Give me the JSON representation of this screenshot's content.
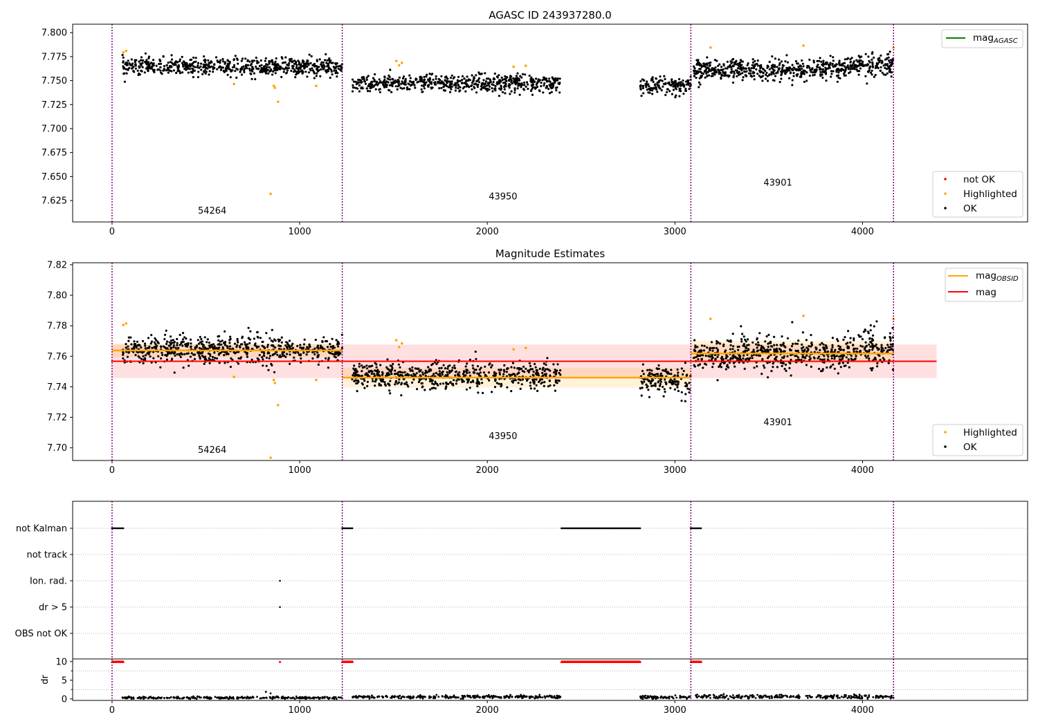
{
  "colors": {
    "ok": "#000000",
    "highlighted": "#ffa500",
    "not_ok": "#ff0000",
    "agasc_line": "#008000",
    "obsid_line": "#ffa500",
    "mag_line": "#ff0000",
    "obs_boundary": "#800080",
    "flag_row_grid": "#b0b0b0"
  },
  "chart_data": [
    {
      "type": "scatter",
      "title": "AGASC ID 243937280.0",
      "xlim": [
        -210,
        4880
      ],
      "ylim": [
        7.6027,
        7.8088
      ],
      "xticks": [
        0,
        1000,
        2000,
        3000,
        4000
      ],
      "xtick_labels": [
        "0",
        "1000",
        "2000",
        "3000",
        "4000"
      ],
      "yticks": [
        7.625,
        7.65,
        7.675,
        7.7,
        7.725,
        7.75,
        7.775,
        7.8
      ],
      "ytick_labels": [
        "7.625",
        "7.650",
        "7.675",
        "7.700",
        "7.725",
        "7.750",
        "7.775",
        "7.800"
      ],
      "obs_boundaries": [
        0,
        1227,
        3085,
        4165
      ],
      "obsid_labels": [
        {
          "text": "54264",
          "x": 610,
          "y": 7.6115
        },
        {
          "text": "43950",
          "x": 2160,
          "y": 7.626
        },
        {
          "text": "43901",
          "x": 3625,
          "y": 7.6405
        }
      ],
      "ok_segments": [
        {
          "x_start": 55,
          "x_end": 1227,
          "mean": 7.7645,
          "spread": 0.0045,
          "n": 650
        },
        {
          "x_start": 1280,
          "x_end": 2390,
          "mean": 7.747,
          "spread": 0.0045,
          "n": 600
        },
        {
          "x_start": 2815,
          "x_end": 3085,
          "mean": 7.7445,
          "spread": 0.0045,
          "n": 150
        },
        {
          "x_start": 3100,
          "x_end": 3920,
          "mean": 7.7615,
          "spread": 0.0055,
          "n": 500
        },
        {
          "x_start": 3920,
          "x_end": 4165,
          "mean": 7.765,
          "spread": 0.006,
          "n": 150
        }
      ],
      "highlighted_points": [
        [
          60,
          7.7795
        ],
        [
          75,
          7.781
        ],
        [
          650,
          7.7465
        ],
        [
          862,
          7.7445
        ],
        [
          868,
          7.7425
        ],
        [
          845,
          7.632
        ],
        [
          885,
          7.728
        ],
        [
          1088,
          7.7445
        ],
        [
          1515,
          7.7705
        ],
        [
          1530,
          7.766
        ],
        [
          1545,
          7.7685
        ],
        [
          2140,
          7.7645
        ],
        [
          2205,
          7.7655
        ],
        [
          3190,
          7.7845
        ],
        [
          3685,
          7.7865
        ],
        [
          4165,
          7.7845
        ]
      ],
      "series_legend": [
        {
          "name": "mag_AGASC",
          "label": "mag",
          "subscript": "AGASC"
        }
      ],
      "point_legend": [
        "not OK",
        "Highlighted",
        "OK"
      ]
    },
    {
      "type": "scatter",
      "title": "Magnitude Estimates",
      "xlim": [
        -210,
        4880
      ],
      "ylim": [
        7.6917,
        7.8213
      ],
      "xticks": [
        0,
        1000,
        2000,
        3000,
        4000
      ],
      "xtick_labels": [
        "0",
        "1000",
        "2000",
        "3000",
        "4000"
      ],
      "yticks": [
        7.7,
        7.72,
        7.74,
        7.76,
        7.78,
        7.8,
        7.82
      ],
      "ytick_labels": [
        "7.70",
        "7.72",
        "7.74",
        "7.76",
        "7.78",
        "7.80",
        "7.82"
      ],
      "obs_boundaries": [
        0,
        1227,
        3085,
        4165
      ],
      "obsid_labels": [
        {
          "text": "54264",
          "x": 610,
          "y": 7.6967
        },
        {
          "text": "43950",
          "x": 2160,
          "y": 7.7057
        },
        {
          "text": "43901",
          "x": 3625,
          "y": 7.7147
        }
      ],
      "mag": {
        "value": 7.7567,
        "band": [
          7.7457,
          7.7677
        ],
        "x_range": [
          -5,
          4395
        ]
      },
      "mag_obsid": [
        {
          "x_start": 0,
          "x_end": 1227,
          "value": 7.7638,
          "band": [
            7.7593,
            7.7683
          ]
        },
        {
          "x_start": 1227,
          "x_end": 3085,
          "value": 7.746,
          "band": [
            7.7395,
            7.7525
          ]
        },
        {
          "x_start": 3085,
          "x_end": 4165,
          "value": 7.7618,
          "band": [
            7.7553,
            7.7703
          ]
        }
      ],
      "ok_segments": [
        {
          "x_start": 55,
          "x_end": 1227,
          "mean": 7.7645,
          "spread": 0.0045,
          "n": 650
        },
        {
          "x_start": 1280,
          "x_end": 2390,
          "mean": 7.747,
          "spread": 0.0045,
          "n": 600
        },
        {
          "x_start": 2815,
          "x_end": 3085,
          "mean": 7.7445,
          "spread": 0.0045,
          "n": 150
        },
        {
          "x_start": 3100,
          "x_end": 3920,
          "mean": 7.7615,
          "spread": 0.0055,
          "n": 500
        },
        {
          "x_start": 3920,
          "x_end": 4165,
          "mean": 7.765,
          "spread": 0.006,
          "n": 150
        }
      ],
      "highlighted_points": [
        [
          60,
          7.7805
        ],
        [
          75,
          7.7815
        ],
        [
          650,
          7.7465
        ],
        [
          862,
          7.7445
        ],
        [
          868,
          7.7425
        ],
        [
          845,
          7.6935
        ],
        [
          885,
          7.728
        ],
        [
          1088,
          7.7445
        ],
        [
          1515,
          7.7705
        ],
        [
          1530,
          7.766
        ],
        [
          1545,
          7.7685
        ],
        [
          2140,
          7.7645
        ],
        [
          2205,
          7.7655
        ],
        [
          3190,
          7.7845
        ],
        [
          3685,
          7.7865
        ],
        [
          4165,
          7.7845
        ]
      ],
      "series_legend": [
        {
          "name": "mag_OBSID",
          "label": "mag",
          "subscript": "OBSID"
        },
        {
          "name": "mag",
          "label": "mag",
          "subscript": ""
        }
      ],
      "point_legend": [
        "Highlighted",
        "OK"
      ]
    },
    {
      "type": "scatter",
      "title": "",
      "xlim": [
        -210,
        4880
      ],
      "xticks": [
        0,
        1000,
        2000,
        3000,
        4000
      ],
      "xtick_labels": [
        "0",
        "1000",
        "2000",
        "3000",
        "4000"
      ],
      "obs_boundaries": [
        0,
        1227,
        3085,
        4165
      ],
      "flag_rows": [
        "not Kalman",
        "not track",
        "Ion. rad.",
        "dr > 5",
        "OBS not OK"
      ],
      "flag_marks": [
        {
          "row": "not Kalman",
          "x_start": 0,
          "x_end": 60,
          "step": 6
        },
        {
          "row": "not Kalman",
          "x_start": 1227,
          "x_end": 1285,
          "step": 6
        },
        {
          "row": "not Kalman",
          "x_start": 2395,
          "x_end": 2815,
          "step": 6
        },
        {
          "row": "not Kalman",
          "x_start": 3085,
          "x_end": 3140,
          "step": 6
        },
        {
          "row": "Ion. rad.",
          "x_start": 895,
          "x_end": 895,
          "step": 1
        },
        {
          "row": "dr > 5",
          "x_start": 895,
          "x_end": 895,
          "step": 1
        }
      ],
      "dr_ylabel": "dr",
      "dr_ylim": [
        -0.4,
        10.7
      ],
      "dr_yticks": [
        0,
        5,
        10
      ],
      "dr_ytick_labels": [
        "0",
        "5",
        "10"
      ],
      "dr_capped": [
        {
          "x_start": 0,
          "x_end": 60
        },
        {
          "x_start": 1227,
          "x_end": 1285
        },
        {
          "x_start": 2395,
          "x_end": 2815
        },
        {
          "x_start": 3085,
          "x_end": 3140
        },
        {
          "x_start": 895,
          "x_end": 895
        }
      ],
      "dr_segments": [
        {
          "x_start": 55,
          "x_end": 1227,
          "mean": 0.3,
          "spread": 0.15,
          "n": 300
        },
        {
          "x_start": 1280,
          "x_end": 2390,
          "mean": 0.55,
          "spread": 0.2,
          "n": 300
        },
        {
          "x_start": 2815,
          "x_end": 3085,
          "mean": 0.45,
          "spread": 0.2,
          "n": 80
        },
        {
          "x_start": 3100,
          "x_end": 4165,
          "mean": 0.6,
          "spread": 0.25,
          "n": 280
        }
      ],
      "dr_extra_points": [
        [
          820,
          1.9
        ],
        [
          845,
          1.5
        ]
      ]
    }
  ]
}
